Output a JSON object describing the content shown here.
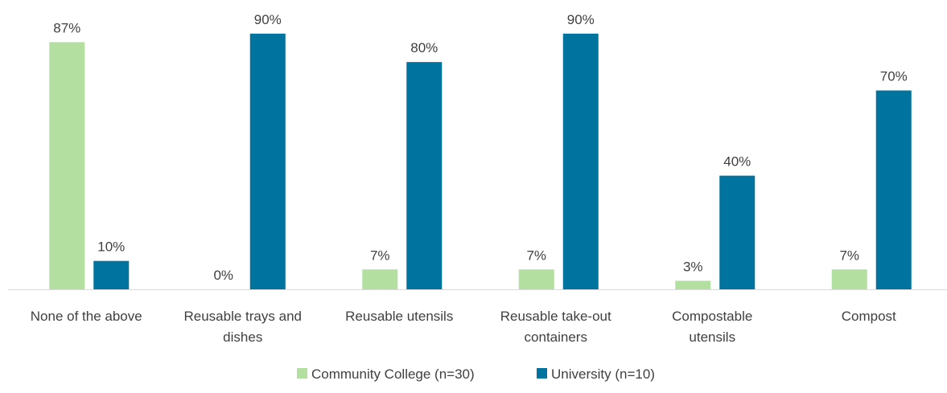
{
  "chart_data": {
    "type": "bar",
    "categories": [
      [
        "None of the above"
      ],
      [
        "Reusable trays and",
        "dishes"
      ],
      [
        "Reusable utensils"
      ],
      [
        "Reusable take-out",
        "containers"
      ],
      [
        "Compostable",
        "utensils"
      ],
      [
        "Compost"
      ]
    ],
    "series": [
      {
        "name": "Community College (n=30)",
        "color": "#b3e0a0",
        "values": [
          87,
          0,
          7,
          7,
          3,
          7
        ],
        "labels": [
          "87%",
          "0%",
          "7%",
          "7%",
          "3%",
          "7%"
        ]
      },
      {
        "name": "University (n=10)",
        "color": "#00739e",
        "values": [
          10,
          90,
          80,
          90,
          40,
          70
        ],
        "labels": [
          "10%",
          "90%",
          "80%",
          "90%",
          "40%",
          "70%"
        ]
      }
    ],
    "ylim": [
      0,
      100
    ],
    "grid": false,
    "legend_position": "bottom",
    "data_labels": true,
    "axis_color": "#d9d9d9"
  }
}
